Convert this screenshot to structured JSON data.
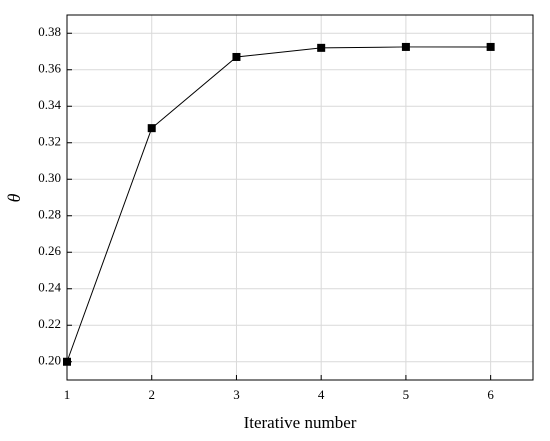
{
  "chart_data": {
    "type": "line",
    "x_label": "Iterative number",
    "y_label": "θ",
    "x": [
      1,
      2,
      3,
      4,
      5,
      6
    ],
    "series": [
      {
        "color": "#000000",
        "values": [
          0.2,
          0.328,
          0.367,
          0.372,
          0.3725,
          0.3725
        ]
      }
    ],
    "xlim": [
      1,
      6.5
    ],
    "xticks": [
      1,
      2,
      3,
      4,
      5,
      6
    ],
    "ylim": [
      0.19,
      0.39
    ],
    "yticks": [
      {
        "value": 0.2,
        "label": "0.20"
      },
      {
        "value": 0.22,
        "label": "0.22"
      },
      {
        "value": 0.24,
        "label": "0.24"
      },
      {
        "value": 0.26,
        "label": "0.26"
      },
      {
        "value": 0.28,
        "label": "0.28"
      },
      {
        "value": 0.3,
        "label": "0.30"
      },
      {
        "value": 0.32,
        "label": "0.32"
      },
      {
        "value": 0.34,
        "label": "0.34"
      },
      {
        "value": 0.36,
        "label": "0.36"
      },
      {
        "value": 0.38,
        "label": "0.38"
      }
    ],
    "grid": true
  }
}
